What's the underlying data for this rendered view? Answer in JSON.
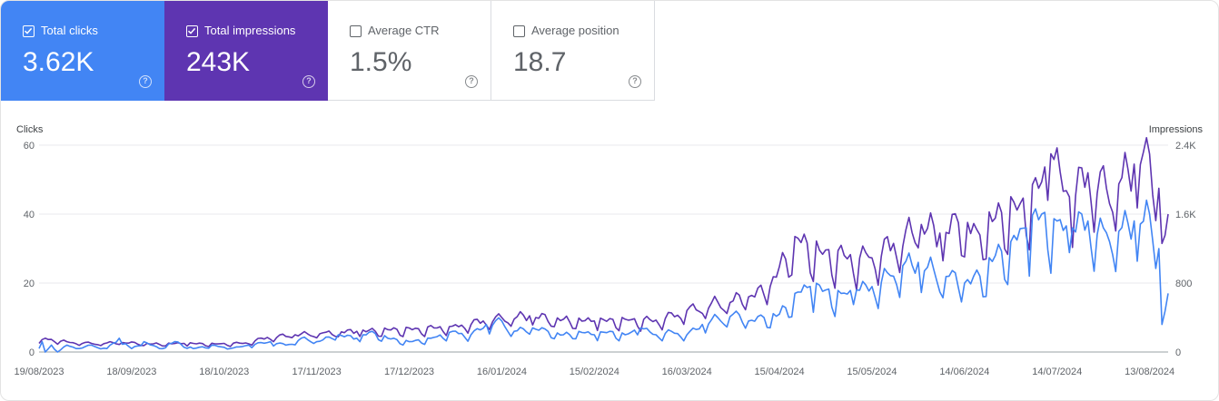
{
  "metrics": [
    {
      "id": "clicks",
      "label": "Total clicks",
      "value": "3.62K",
      "checked": true,
      "color": "#4285f4"
    },
    {
      "id": "impr",
      "label": "Total impressions",
      "value": "243K",
      "checked": true,
      "color": "#5e35b1"
    },
    {
      "id": "ctr",
      "label": "Average CTR",
      "value": "1.5%",
      "checked": false
    },
    {
      "id": "pos",
      "label": "Average position",
      "value": "18.7",
      "checked": false
    }
  ],
  "help_glyph": "?",
  "chart_data": {
    "type": "line",
    "left_axis_label": "Clicks",
    "right_axis_label": "Impressions",
    "left_ticks": [
      "0",
      "20",
      "40",
      "60"
    ],
    "left_tick_values": [
      0,
      20,
      40,
      60
    ],
    "right_ticks": [
      "0",
      "800",
      "1.6K",
      "2.4K"
    ],
    "right_tick_values": [
      0,
      800,
      1600,
      2400
    ],
    "left_ylim": [
      0,
      60
    ],
    "right_ylim": [
      0,
      2400
    ],
    "x_start": "2023-08-19",
    "x_end": "2024-08-19",
    "x_ticks": [
      "19/08/2023",
      "18/09/2023",
      "18/10/2023",
      "17/11/2023",
      "17/12/2023",
      "16/01/2024",
      "15/02/2024",
      "16/03/2024",
      "15/04/2024",
      "15/05/2024",
      "14/06/2024",
      "14/07/2024",
      "13/08/2024"
    ],
    "grid": true,
    "legend": "none",
    "series": [
      {
        "name": "Clicks",
        "axis": "left",
        "color": "#4285f4",
        "anchors": [
          [
            "2023-08-19",
            1
          ],
          [
            "2023-08-20",
            3
          ],
          [
            "2023-08-21",
            0
          ],
          [
            "2023-08-23",
            2
          ],
          [
            "2023-08-25",
            0
          ],
          [
            "2023-08-28",
            2
          ],
          [
            "2023-09-01",
            1
          ],
          [
            "2023-09-05",
            2
          ],
          [
            "2023-09-10",
            1
          ],
          [
            "2023-09-14",
            4
          ],
          [
            "2023-09-18",
            1
          ],
          [
            "2023-09-22",
            3
          ],
          [
            "2023-09-27",
            1
          ],
          [
            "2023-10-02",
            3
          ],
          [
            "2023-10-08",
            1
          ],
          [
            "2023-10-14",
            2
          ],
          [
            "2023-10-20",
            1
          ],
          [
            "2023-10-26",
            2
          ],
          [
            "2023-11-02",
            3
          ],
          [
            "2023-11-07",
            2
          ],
          [
            "2023-11-12",
            4
          ],
          [
            "2023-11-17",
            3
          ],
          [
            "2023-11-24",
            5
          ],
          [
            "2023-11-30",
            4
          ],
          [
            "2023-12-05",
            6
          ],
          [
            "2023-12-10",
            4
          ],
          [
            "2023-12-17",
            3
          ],
          [
            "2023-12-24",
            4
          ],
          [
            "2023-12-31",
            6
          ],
          [
            "2024-01-06",
            5
          ],
          [
            "2024-01-11",
            8
          ],
          [
            "2024-01-16",
            9
          ],
          [
            "2024-01-20",
            6
          ],
          [
            "2024-01-26",
            7
          ],
          [
            "2024-01-31",
            6
          ],
          [
            "2024-02-05",
            5
          ],
          [
            "2024-02-10",
            6
          ],
          [
            "2024-02-15",
            5
          ],
          [
            "2024-02-20",
            6
          ],
          [
            "2024-02-25",
            5
          ],
          [
            "2024-03-01",
            7
          ],
          [
            "2024-03-06",
            5
          ],
          [
            "2024-03-11",
            6
          ],
          [
            "2024-03-16",
            5
          ],
          [
            "2024-03-21",
            8
          ],
          [
            "2024-03-26",
            10
          ],
          [
            "2024-03-31",
            11
          ],
          [
            "2024-04-05",
            9
          ],
          [
            "2024-04-10",
            10
          ],
          [
            "2024-04-15",
            11
          ],
          [
            "2024-04-20",
            17
          ],
          [
            "2024-04-25",
            19
          ],
          [
            "2024-04-30",
            18
          ],
          [
            "2024-05-05",
            17
          ],
          [
            "2024-05-10",
            18
          ],
          [
            "2024-05-15",
            19
          ],
          [
            "2024-05-20",
            23
          ],
          [
            "2024-05-25",
            25
          ],
          [
            "2024-05-30",
            26
          ],
          [
            "2024-06-04",
            24
          ],
          [
            "2024-06-09",
            22
          ],
          [
            "2024-06-14",
            20
          ],
          [
            "2024-06-19",
            22
          ],
          [
            "2024-06-24",
            28
          ],
          [
            "2024-06-29",
            32
          ],
          [
            "2024-07-04",
            36
          ],
          [
            "2024-07-09",
            40
          ],
          [
            "2024-07-14",
            38
          ],
          [
            "2024-07-19",
            36
          ],
          [
            "2024-07-24",
            38
          ],
          [
            "2024-07-29",
            36
          ],
          [
            "2024-08-03",
            35
          ],
          [
            "2024-08-08",
            38
          ],
          [
            "2024-08-13",
            40
          ],
          [
            "2024-08-16",
            30
          ],
          [
            "2024-08-17",
            8
          ],
          [
            "2024-08-19",
            17
          ]
        ],
        "weekly_dip": 0.36
      },
      {
        "name": "Impressions",
        "axis": "right",
        "color": "#5e35b1",
        "anchors": [
          [
            "2023-08-19",
            100
          ],
          [
            "2023-08-21",
            160
          ],
          [
            "2023-08-28",
            120
          ],
          [
            "2023-09-05",
            100
          ],
          [
            "2023-09-15",
            110
          ],
          [
            "2023-09-25",
            95
          ],
          [
            "2023-10-05",
            100
          ],
          [
            "2023-10-15",
            95
          ],
          [
            "2023-10-25",
            105
          ],
          [
            "2023-11-01",
            170
          ],
          [
            "2023-11-10",
            200
          ],
          [
            "2023-11-20",
            230
          ],
          [
            "2023-11-30",
            240
          ],
          [
            "2023-12-10",
            260
          ],
          [
            "2023-12-20",
            270
          ],
          [
            "2023-12-31",
            300
          ],
          [
            "2024-01-10",
            360
          ],
          [
            "2024-01-16",
            400
          ],
          [
            "2024-01-25",
            420
          ],
          [
            "2024-02-05",
            380
          ],
          [
            "2024-02-15",
            360
          ],
          [
            "2024-02-25",
            380
          ],
          [
            "2024-03-06",
            370
          ],
          [
            "2024-03-16",
            480
          ],
          [
            "2024-03-26",
            580
          ],
          [
            "2024-04-05",
            640
          ],
          [
            "2024-04-12",
            760
          ],
          [
            "2024-04-20",
            1340
          ],
          [
            "2024-04-28",
            1180
          ],
          [
            "2024-05-06",
            1120
          ],
          [
            "2024-05-14",
            1100
          ],
          [
            "2024-05-22",
            1260
          ],
          [
            "2024-05-31",
            1480
          ],
          [
            "2024-06-06",
            1380
          ],
          [
            "2024-06-12",
            1500
          ],
          [
            "2024-06-18",
            1420
          ],
          [
            "2024-06-26",
            1620
          ],
          [
            "2024-07-02",
            1720
          ],
          [
            "2024-07-08",
            1900
          ],
          [
            "2024-07-12",
            2300
          ],
          [
            "2024-07-18",
            1800
          ],
          [
            "2024-07-24",
            2080
          ],
          [
            "2024-07-30",
            1900
          ],
          [
            "2024-08-03",
            1950
          ],
          [
            "2024-08-08",
            2180
          ],
          [
            "2024-08-11",
            2320
          ],
          [
            "2024-08-16",
            1900
          ],
          [
            "2024-08-17",
            1260
          ],
          [
            "2024-08-19",
            1600
          ]
        ],
        "weekly_dip": 0.3
      }
    ]
  }
}
